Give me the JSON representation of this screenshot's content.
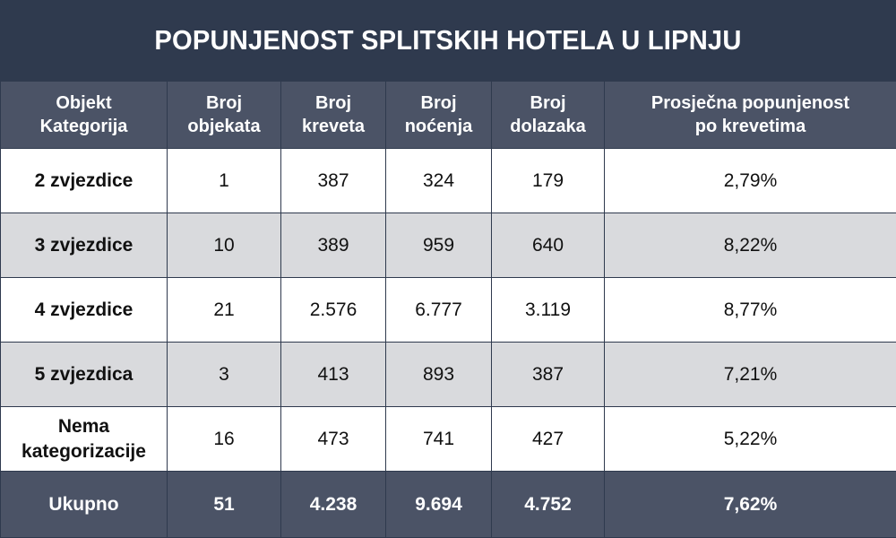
{
  "title": "POPUNJENOST SPLITSKIH HOTELA U LIPNJU",
  "colors": {
    "background": "#2f3a4e",
    "header": "#4b5366",
    "row_alt": "#d9dadd",
    "row": "#ffffff"
  },
  "columns": [
    [
      "Objekt",
      "Kategorija"
    ],
    [
      "Broj",
      "objekata"
    ],
    [
      "Broj",
      "kreveta"
    ],
    [
      "Broj",
      "noćenja"
    ],
    [
      "Broj",
      "dolazaka"
    ],
    [
      "Prosječna popunjenost",
      "po krevetima"
    ]
  ],
  "rows": [
    {
      "category": [
        "2 zvjezdice"
      ],
      "values": [
        "1",
        "387",
        "324",
        "179",
        "2,79%"
      ]
    },
    {
      "category": [
        "3 zvjezdice"
      ],
      "values": [
        "10",
        "389",
        "959",
        "640",
        "8,22%"
      ]
    },
    {
      "category": [
        "4 zvjezdice"
      ],
      "values": [
        "21",
        "2.576",
        "6.777",
        "3.119",
        "8,77%"
      ]
    },
    {
      "category": [
        "5 zvjezdica"
      ],
      "values": [
        "3",
        "413",
        "893",
        "387",
        "7,21%"
      ]
    },
    {
      "category": [
        "Nema",
        "kategorizacije"
      ],
      "values": [
        "16",
        "473",
        "741",
        "427",
        "5,22%"
      ]
    }
  ],
  "total": {
    "label": "Ukupno",
    "values": [
      "51",
      "4.238",
      "9.694",
      "4.752",
      "7,62%"
    ]
  },
  "chart_data": {
    "type": "table",
    "title": "POPUNJENOST SPLITSKIH HOTELA U LIPNJU",
    "columns": [
      "Objekt Kategorija",
      "Broj objekata",
      "Broj kreveta",
      "Broj noćenja",
      "Broj dolazaka",
      "Prosječna popunjenost po krevetima"
    ],
    "rows": [
      [
        "2 zvjezdice",
        "1",
        "387",
        "324",
        "179",
        "2,79%"
      ],
      [
        "3 zvjezdice",
        "10",
        "389",
        "959",
        "640",
        "8,22%"
      ],
      [
        "4 zvjezdice",
        "21",
        "2.576",
        "6.777",
        "3.119",
        "8,77%"
      ],
      [
        "5 zvjezdica",
        "3",
        "413",
        "893",
        "387",
        "7,21%"
      ],
      [
        "Nema kategorizacije",
        "16",
        "473",
        "741",
        "427",
        "5,22%"
      ],
      [
        "Ukupno",
        "51",
        "4.238",
        "9.694",
        "4.752",
        "7,62%"
      ]
    ]
  }
}
